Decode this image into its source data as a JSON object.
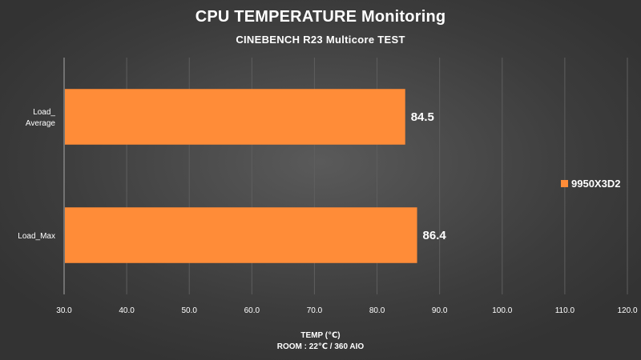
{
  "chart_data": {
    "type": "bar",
    "orientation": "horizontal",
    "title": "CPU TEMPERATURE Monitoring",
    "subtitle": "CINEBENCH R23 Multicore TEST",
    "xlabel": "TEMP (℃)",
    "xlabel_note": "ROOM : 22℃ / 360 AIO",
    "categories": [
      {
        "lines": [
          "Load_",
          "Average"
        ]
      },
      {
        "lines": [
          "Load_Max"
        ]
      }
    ],
    "series": [
      {
        "name": "9950X3D2",
        "color": "#ff8c38",
        "values": [
          84.5,
          86.4
        ]
      }
    ],
    "xlim": [
      30,
      120
    ],
    "xticks": [
      30,
      40,
      50,
      60,
      70,
      80,
      90,
      100,
      110,
      120
    ],
    "tick_format_decimals": 1,
    "grid": true,
    "legend_position": "right",
    "colors": {
      "bar": "#ff8c38",
      "grid": "#5e5e5e",
      "axis": "#a8a8a8",
      "text": "#ffffff"
    }
  }
}
